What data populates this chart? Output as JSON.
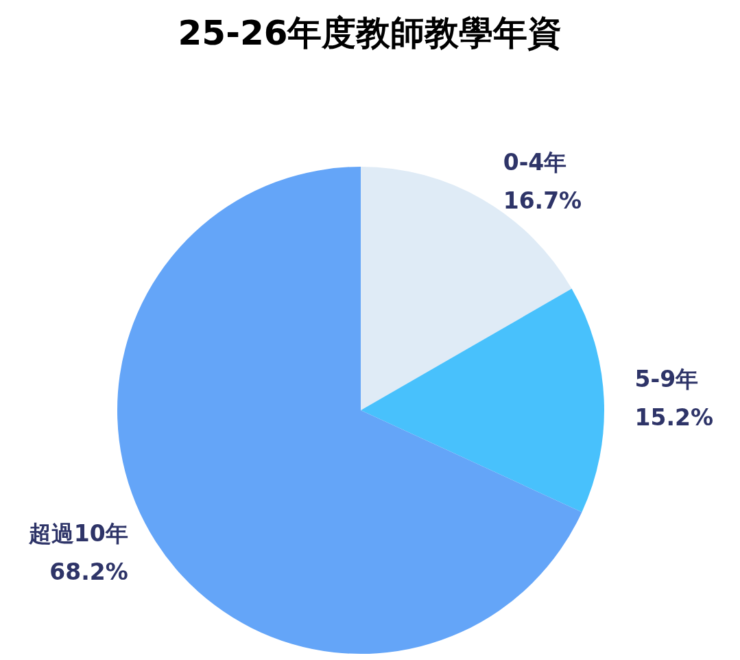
{
  "chart_data": {
    "type": "pie",
    "title": "25-26年度教師教學年資",
    "categories": [
      "0-4年",
      "5-9年",
      "超過10年"
    ],
    "values": [
      16.7,
      15.2,
      68.2
    ],
    "colors": [
      "#dfebf6",
      "#48c1fc",
      "#64a5f8"
    ],
    "value_labels": [
      "16.7%",
      "15.2%",
      "68.2%"
    ],
    "legend": false
  }
}
